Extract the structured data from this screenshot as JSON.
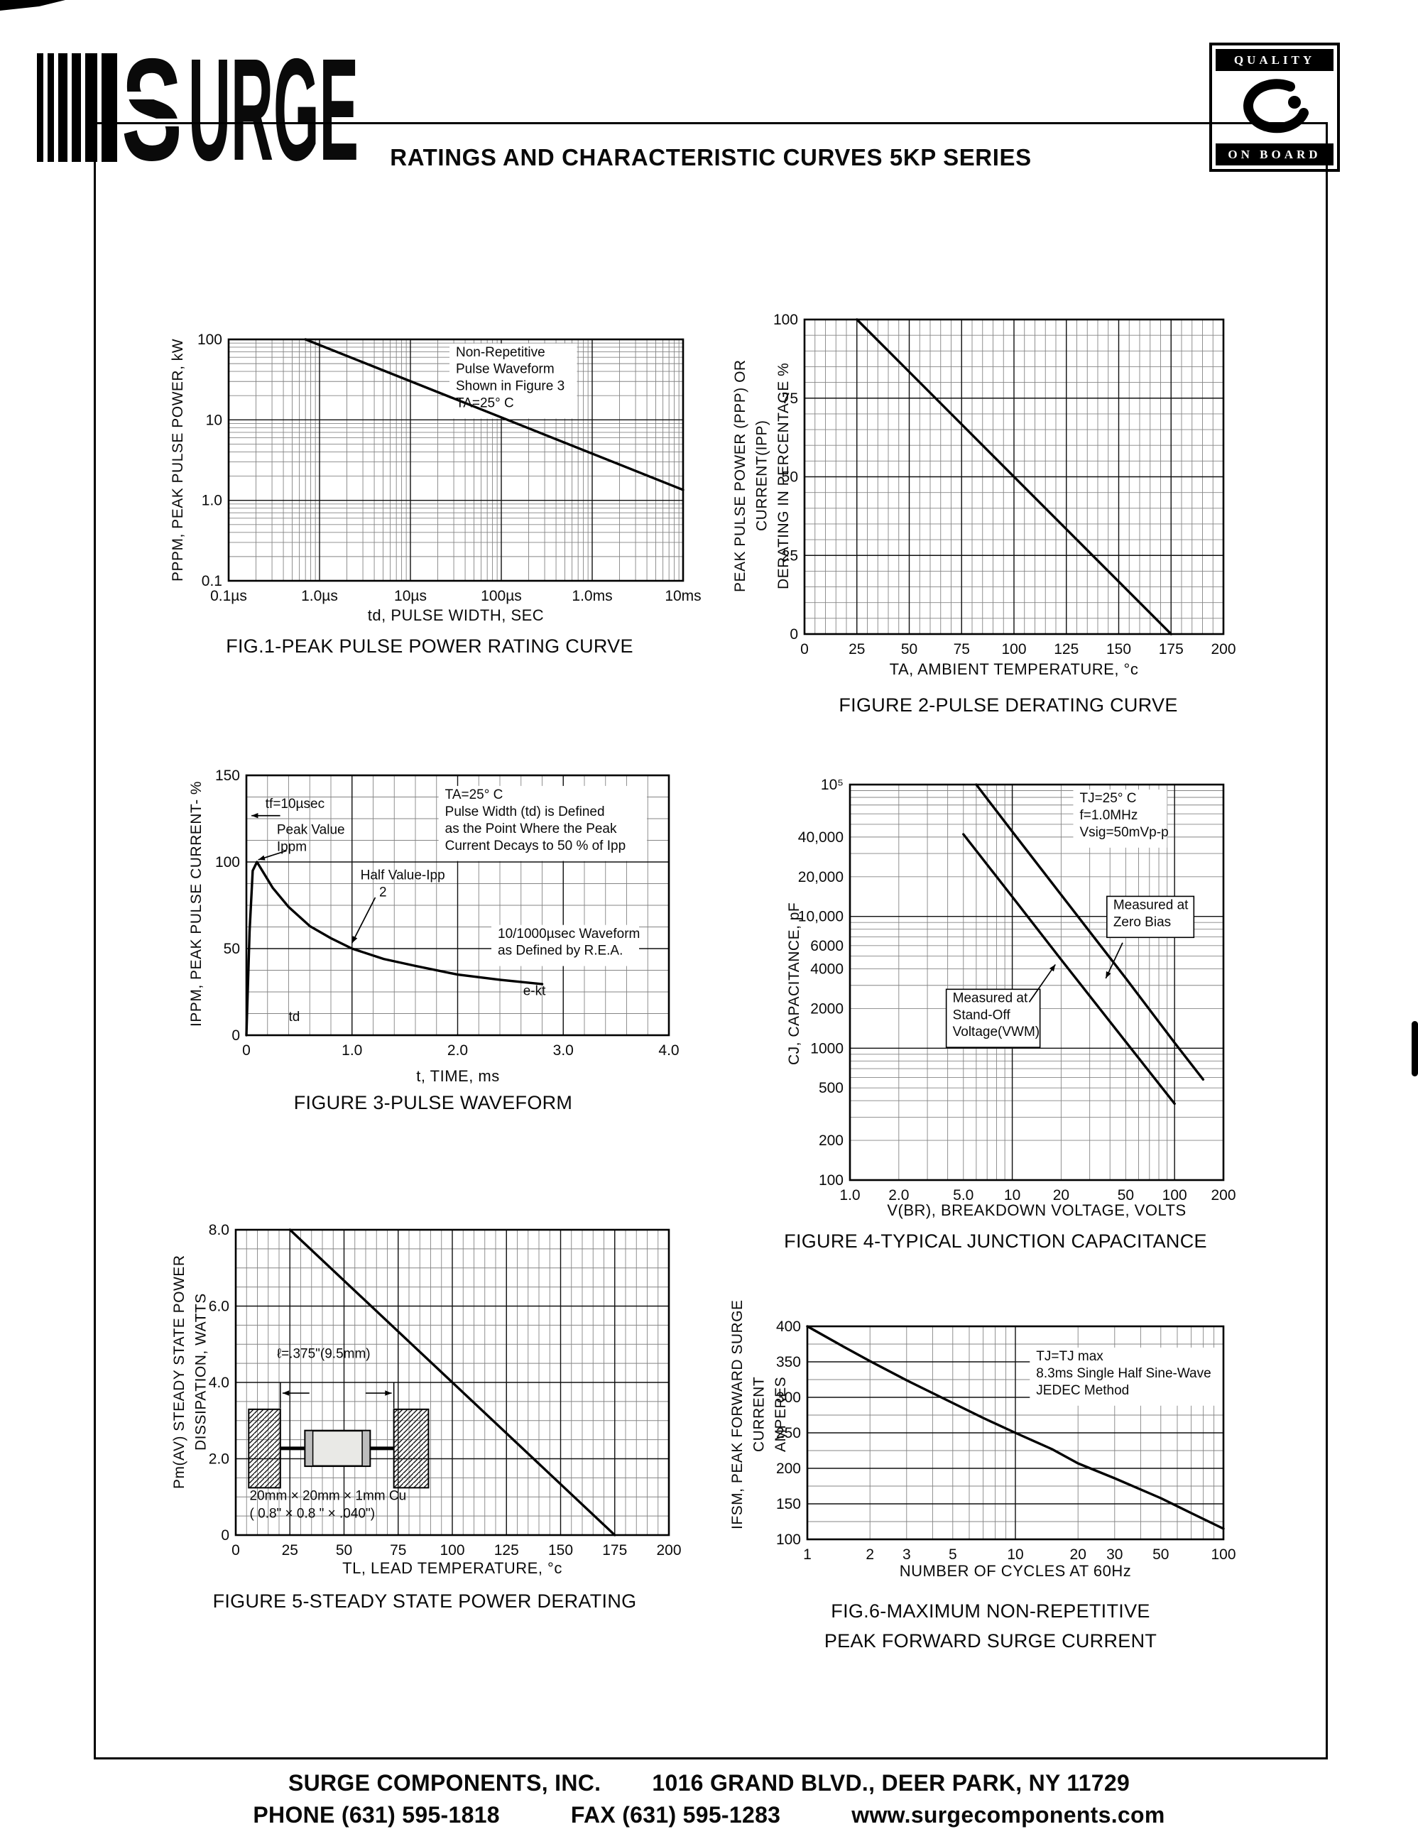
{
  "logo": {
    "s": "S",
    "rest": "URGE"
  },
  "badge": {
    "top": "QUALITY",
    "bottom": "ON BOARD"
  },
  "title": "RATINGS AND CHARACTERISTIC CURVES 5KP SERIES",
  "footer": {
    "company": "SURGE COMPONENTS, INC.",
    "address": "1016 GRAND BLVD., DEER PARK, NY  11729",
    "phone": "PHONE (631) 595-1818",
    "fax": "FAX (631) 595-1283",
    "website": "www.surgecomponents.com"
  },
  "chart_data": [
    {
      "id": "figure-1",
      "type": "line",
      "caption": "FIG.1-PEAK PULSE POWER RATING CURVE",
      "xlabel": "td, PULSE WIDTH, SEC",
      "ylabel": "PPPM, PEAK PULSE POWER, kW",
      "xscale": "log",
      "yscale": "log",
      "xlim": [
        1e-07,
        0.01
      ],
      "ylim": [
        0.1,
        100
      ],
      "xticks": [
        {
          "v": 1e-07,
          "label": "0.1µs"
        },
        {
          "v": 1e-06,
          "label": "1.0µs"
        },
        {
          "v": 1e-05,
          "label": "10µs"
        },
        {
          "v": 0.0001,
          "label": "100µs"
        },
        {
          "v": 0.001,
          "label": "1.0ms"
        },
        {
          "v": 0.01,
          "label": "10ms"
        }
      ],
      "yticks": [
        {
          "v": 100,
          "label": "100"
        },
        {
          "v": 10,
          "label": "10"
        },
        {
          "v": 1,
          "label": "1.0"
        },
        {
          "v": 0.1,
          "label": "0.1"
        }
      ],
      "series": [
        {
          "name": "peak pulse power",
          "points": [
            [
              7e-07,
              100
            ],
            [
              0.01,
              1.35
            ]
          ]
        }
      ],
      "annotations": [
        {
          "text": "Non-Repetitive\nPulse Waveform\nShown in Figure 3\nTA=25° C",
          "fx": 0.5,
          "fy": 0.07,
          "box": "white"
        }
      ]
    },
    {
      "id": "figure-2",
      "type": "line",
      "caption": "FIGURE 2-PULSE DERATING CURVE",
      "xlabel": "TA, AMBIENT  TEMPERATURE, °c",
      "ylabel": "PEAK PULSE POWER (PPP) OR CURRENT(IPP)\nDERATING IN PERCENTAGE %",
      "xscale": "linear",
      "yscale": "linear",
      "xlim": [
        0,
        200
      ],
      "ylim": [
        0,
        100
      ],
      "grid": {
        "x_minor": 5,
        "y_minor": 5
      },
      "xticks": [
        {
          "v": 0,
          "label": "0"
        },
        {
          "v": 25,
          "label": "25"
        },
        {
          "v": 50,
          "label": "50"
        },
        {
          "v": 75,
          "label": "75"
        },
        {
          "v": 100,
          "label": "100"
        },
        {
          "v": 125,
          "label": "125"
        },
        {
          "v": 150,
          "label": "150"
        },
        {
          "v": 175,
          "label": "175"
        },
        {
          "v": 200,
          "label": "200"
        }
      ],
      "yticks": [
        {
          "v": 100,
          "label": "100"
        },
        {
          "v": 75,
          "label": "75"
        },
        {
          "v": 50,
          "label": "50"
        },
        {
          "v": 25,
          "label": "25"
        },
        {
          "v": 0,
          "label": "0"
        }
      ],
      "series": [
        {
          "name": "pulse derating",
          "points": [
            [
              25,
              100
            ],
            [
              175,
              0
            ]
          ]
        }
      ]
    },
    {
      "id": "figure-3",
      "type": "line",
      "caption": "FIGURE 3-PULSE WAVEFORM",
      "xlabel": "t, TIME, ms",
      "ylabel": "IPPM, PEAK PULSE CURRENT- %",
      "xscale": "linear",
      "yscale": "linear",
      "xlim": [
        0,
        4
      ],
      "ylim": [
        0,
        150
      ],
      "grid": {
        "x_minor": 0.2,
        "y_minor": 12.5
      },
      "xticks": [
        {
          "v": 0,
          "label": "0"
        },
        {
          "v": 1,
          "label": "1.0"
        },
        {
          "v": 2,
          "label": "2.0"
        },
        {
          "v": 3,
          "label": "3.0"
        },
        {
          "v": 4,
          "label": "4.0"
        }
      ],
      "yticks": [
        {
          "v": 150,
          "label": "150"
        },
        {
          "v": 100,
          "label": "100"
        },
        {
          "v": 50,
          "label": "50"
        },
        {
          "v": 0,
          "label": "0"
        }
      ],
      "series": [
        {
          "name": "10/1000µsec pulse waveform",
          "points": [
            [
              0,
              0
            ],
            [
              0.03,
              60
            ],
            [
              0.06,
              95
            ],
            [
              0.1,
              100
            ],
            [
              0.25,
              85
            ],
            [
              0.4,
              74
            ],
            [
              0.6,
              63
            ],
            [
              0.8,
              56
            ],
            [
              1,
              50
            ],
            [
              1.3,
              44
            ],
            [
              1.6,
              40
            ],
            [
              2,
              35
            ],
            [
              2.4,
              32
            ],
            [
              2.8,
              29.5
            ]
          ]
        }
      ],
      "annotations": [
        {
          "text": "TA=25° C\nPulse Width (td) is Defined\nas the Point Where the Peak\nCurrent Decays to 50 % of Ipp",
          "fx": 0.47,
          "fy": 0.09,
          "box": "white"
        },
        {
          "text": "tf=10µsec",
          "fx": 0.045,
          "fy": 0.125
        },
        {
          "text": "Peak Value\nIppm",
          "fx": 0.072,
          "fy": 0.225
        },
        {
          "text": "Half Value-Ipp\n     2",
          "fx": 0.27,
          "fy": 0.4
        },
        {
          "text": "10/1000µsec Waveform\nas Defined by R.E.A.",
          "fx": 0.595,
          "fy": 0.625,
          "box": "white"
        },
        {
          "text": "e-kt",
          "fx": 0.655,
          "fy": 0.845
        },
        {
          "text": "td",
          "fx": 0.1,
          "fy": 0.945
        }
      ],
      "arrows": [
        [
          0.305,
          0.47,
          0.25,
          0.645
        ],
        [
          0.08,
          0.155,
          0.012,
          0.155
        ],
        [
          0.095,
          0.29,
          0.028,
          0.325
        ]
      ]
    },
    {
      "id": "figure-4",
      "type": "line",
      "caption": "FIGURE 4-TYPICAL JUNCTION CAPACITANCE",
      "xlabel": "V(BR), BREAKDOWN VOLTAGE, VOLTS",
      "ylabel": "CJ, CAPACITANCE, pF",
      "xscale": "log",
      "yscale": "log",
      "xlim": [
        1,
        200
      ],
      "ylim": [
        100,
        100000
      ],
      "xticks": [
        {
          "v": 1,
          "label": "1.0"
        },
        {
          "v": 2,
          "label": "2.0"
        },
        {
          "v": 5,
          "label": "5.0"
        },
        {
          "v": 10,
          "label": "10"
        },
        {
          "v": 20,
          "label": "20"
        },
        {
          "v": 50,
          "label": "50"
        },
        {
          "v": 100,
          "label": "100"
        },
        {
          "v": 200,
          "label": "200"
        }
      ],
      "yticks": [
        {
          "v": 100000,
          "label": "10⁵"
        },
        {
          "v": 40000,
          "label": "40,000"
        },
        {
          "v": 20000,
          "label": "20,000"
        },
        {
          "v": 10000,
          "label": "10,000"
        },
        {
          "v": 6000,
          "label": "6000"
        },
        {
          "v": 4000,
          "label": "4000"
        },
        {
          "v": 2000,
          "label": "2000"
        },
        {
          "v": 1000,
          "label": "1000"
        },
        {
          "v": 500,
          "label": "500"
        },
        {
          "v": 200,
          "label": "200"
        },
        {
          "v": 100,
          "label": "100"
        }
      ],
      "series": [
        {
          "name": "Measured at Zero Bias",
          "points": [
            [
              6,
              100000
            ],
            [
              10,
              44000
            ],
            [
              20,
              14600
            ],
            [
              50,
              3400
            ],
            [
              100,
              1100
            ],
            [
              150,
              580
            ]
          ]
        },
        {
          "name": "Measured at Stand-Off Voltage",
          "points": [
            [
              5,
              42000
            ],
            [
              10,
              14100
            ],
            [
              20,
              4700
            ],
            [
              50,
              1120
            ],
            [
              100,
              380
            ]
          ]
        }
      ],
      "annotations": [
        {
          "text": "TJ=25° C\nf=1.0MHz\nVsig=50mVp-p",
          "fx": 0.615,
          "fy": 0.045,
          "box": "white"
        },
        {
          "text": "Measured at\nZero Bias",
          "fx": 0.705,
          "fy": 0.315,
          "box": true
        },
        {
          "text": "Measured at\nStand-Off\nVoltage(VWM)",
          "fx": 0.275,
          "fy": 0.55,
          "box": true
        }
      ],
      "arrows": [
        [
          0.73,
          0.4,
          0.685,
          0.49
        ],
        [
          0.48,
          0.55,
          0.55,
          0.455
        ]
      ]
    },
    {
      "id": "figure-5",
      "type": "line",
      "caption": "FIGURE 5-STEADY STATE POWER DERATING",
      "xlabel": "TL, LEAD TEMPERATURE, °c",
      "ylabel": "Pm(AV) STEADY STATE POWER DISSIPATION, WATTS",
      "xscale": "linear",
      "yscale": "linear",
      "xlim": [
        0,
        200
      ],
      "ylim": [
        0,
        8
      ],
      "grid": {
        "x_minor": 5,
        "y_minor": 0.5
      },
      "xticks": [
        {
          "v": 0,
          "label": "0"
        },
        {
          "v": 25,
          "label": "25"
        },
        {
          "v": 50,
          "label": "50"
        },
        {
          "v": 75,
          "label": "75"
        },
        {
          "v": 100,
          "label": "100"
        },
        {
          "v": 125,
          "label": "125"
        },
        {
          "v": 150,
          "label": "150"
        },
        {
          "v": 175,
          "label": "175"
        },
        {
          "v": 200,
          "label": "200"
        }
      ],
      "yticks": [
        {
          "v": 8,
          "label": "8.0"
        },
        {
          "v": 6,
          "label": "6.0"
        },
        {
          "v": 4,
          "label": "4.0"
        },
        {
          "v": 2,
          "label": "2.0"
        },
        {
          "v": 0,
          "label": "0"
        }
      ],
      "series": [
        {
          "name": "steady state power derating",
          "points": [
            [
              25,
              8
            ],
            [
              175,
              0
            ]
          ]
        }
      ],
      "inset": {
        "l_label": "ℓ=.375\"(9.5mm)",
        "cu_label": "20mm × 20mm × 1mm Cu\n( 0.8\" ×  0.8 \" × .040\")"
      }
    },
    {
      "id": "figure-6",
      "type": "line",
      "caption": "FIG.6-MAXIMUM NON-REPETITIVE",
      "caption2": "PEAK FORWARD SURGE CURRENT",
      "xlabel": "NUMBER OF CYCLES AT 60Hz",
      "ylabel": "IFSM, PEAK FORWARD SURGE CURRENT\nAMPERES",
      "xscale": "log",
      "yscale": "linear",
      "xlim": [
        1,
        100
      ],
      "ylim": [
        100,
        400
      ],
      "grid": {
        "y_minor": 25
      },
      "xticks": [
        {
          "v": 1,
          "label": "1"
        },
        {
          "v": 2,
          "label": "2"
        },
        {
          "v": 3,
          "label": "3"
        },
        {
          "v": 5,
          "label": "5"
        },
        {
          "v": 10,
          "label": "10"
        },
        {
          "v": 20,
          "label": "20"
        },
        {
          "v": 30,
          "label": "30"
        },
        {
          "v": 50,
          "label": "50"
        },
        {
          "v": 100,
          "label": "100"
        }
      ],
      "yticks": [
        {
          "v": 400,
          "label": "400"
        },
        {
          "v": 350,
          "label": "350"
        },
        {
          "v": 300,
          "label": "300"
        },
        {
          "v": 250,
          "label": "250"
        },
        {
          "v": 200,
          "label": "200"
        },
        {
          "v": 150,
          "label": "150"
        },
        {
          "v": 100,
          "label": "100"
        }
      ],
      "series": [
        {
          "name": "peak forward surge current",
          "points": [
            [
              1,
              400
            ],
            [
              1.5,
              371
            ],
            [
              2,
              351
            ],
            [
              3,
              324
            ],
            [
              5,
              292
            ],
            [
              7,
              271
            ],
            [
              10,
              250
            ],
            [
              15,
              227
            ],
            [
              20,
              207
            ],
            [
              30,
              186
            ],
            [
              50,
              158
            ],
            [
              70,
              137
            ],
            [
              100,
              115
            ]
          ]
        }
      ],
      "annotations": [
        {
          "text": "TJ=TJ max\n8.3ms Single Half Sine-Wave\nJEDEC Method",
          "fx": 0.55,
          "fy": 0.16,
          "box": "white"
        }
      ]
    }
  ]
}
